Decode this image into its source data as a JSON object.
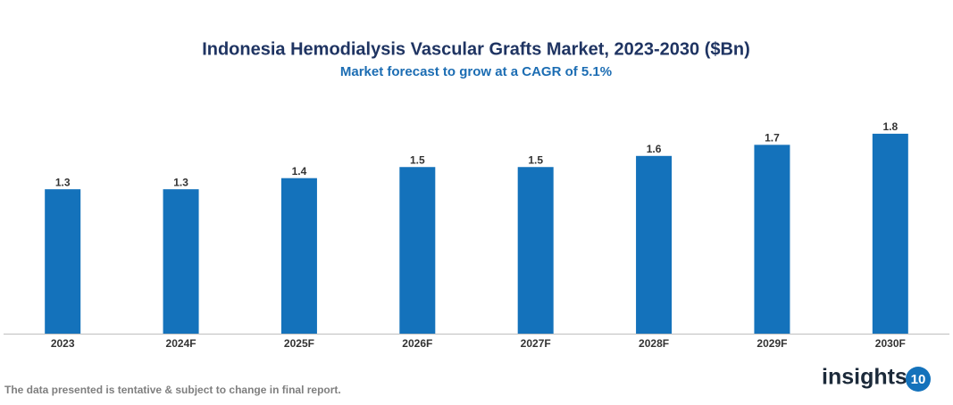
{
  "chart_data": {
    "type": "bar",
    "title": "Indonesia Hemodialysis Vascular Grafts Market, 2023-2030 ($Bn)",
    "subtitle": "Market forecast to grow at a CAGR of 5.1%",
    "categories": [
      "2023",
      "2024F",
      "2025F",
      "2026F",
      "2027F",
      "2028F",
      "2029F",
      "2030F"
    ],
    "values": [
      1.3,
      1.3,
      1.4,
      1.5,
      1.5,
      1.6,
      1.7,
      1.8
    ],
    "color": "#1472bb"
  },
  "footer": {
    "note": "The data presented is tentative & subject to change in final report.",
    "brand": "insights",
    "brand_badge": "10"
  }
}
